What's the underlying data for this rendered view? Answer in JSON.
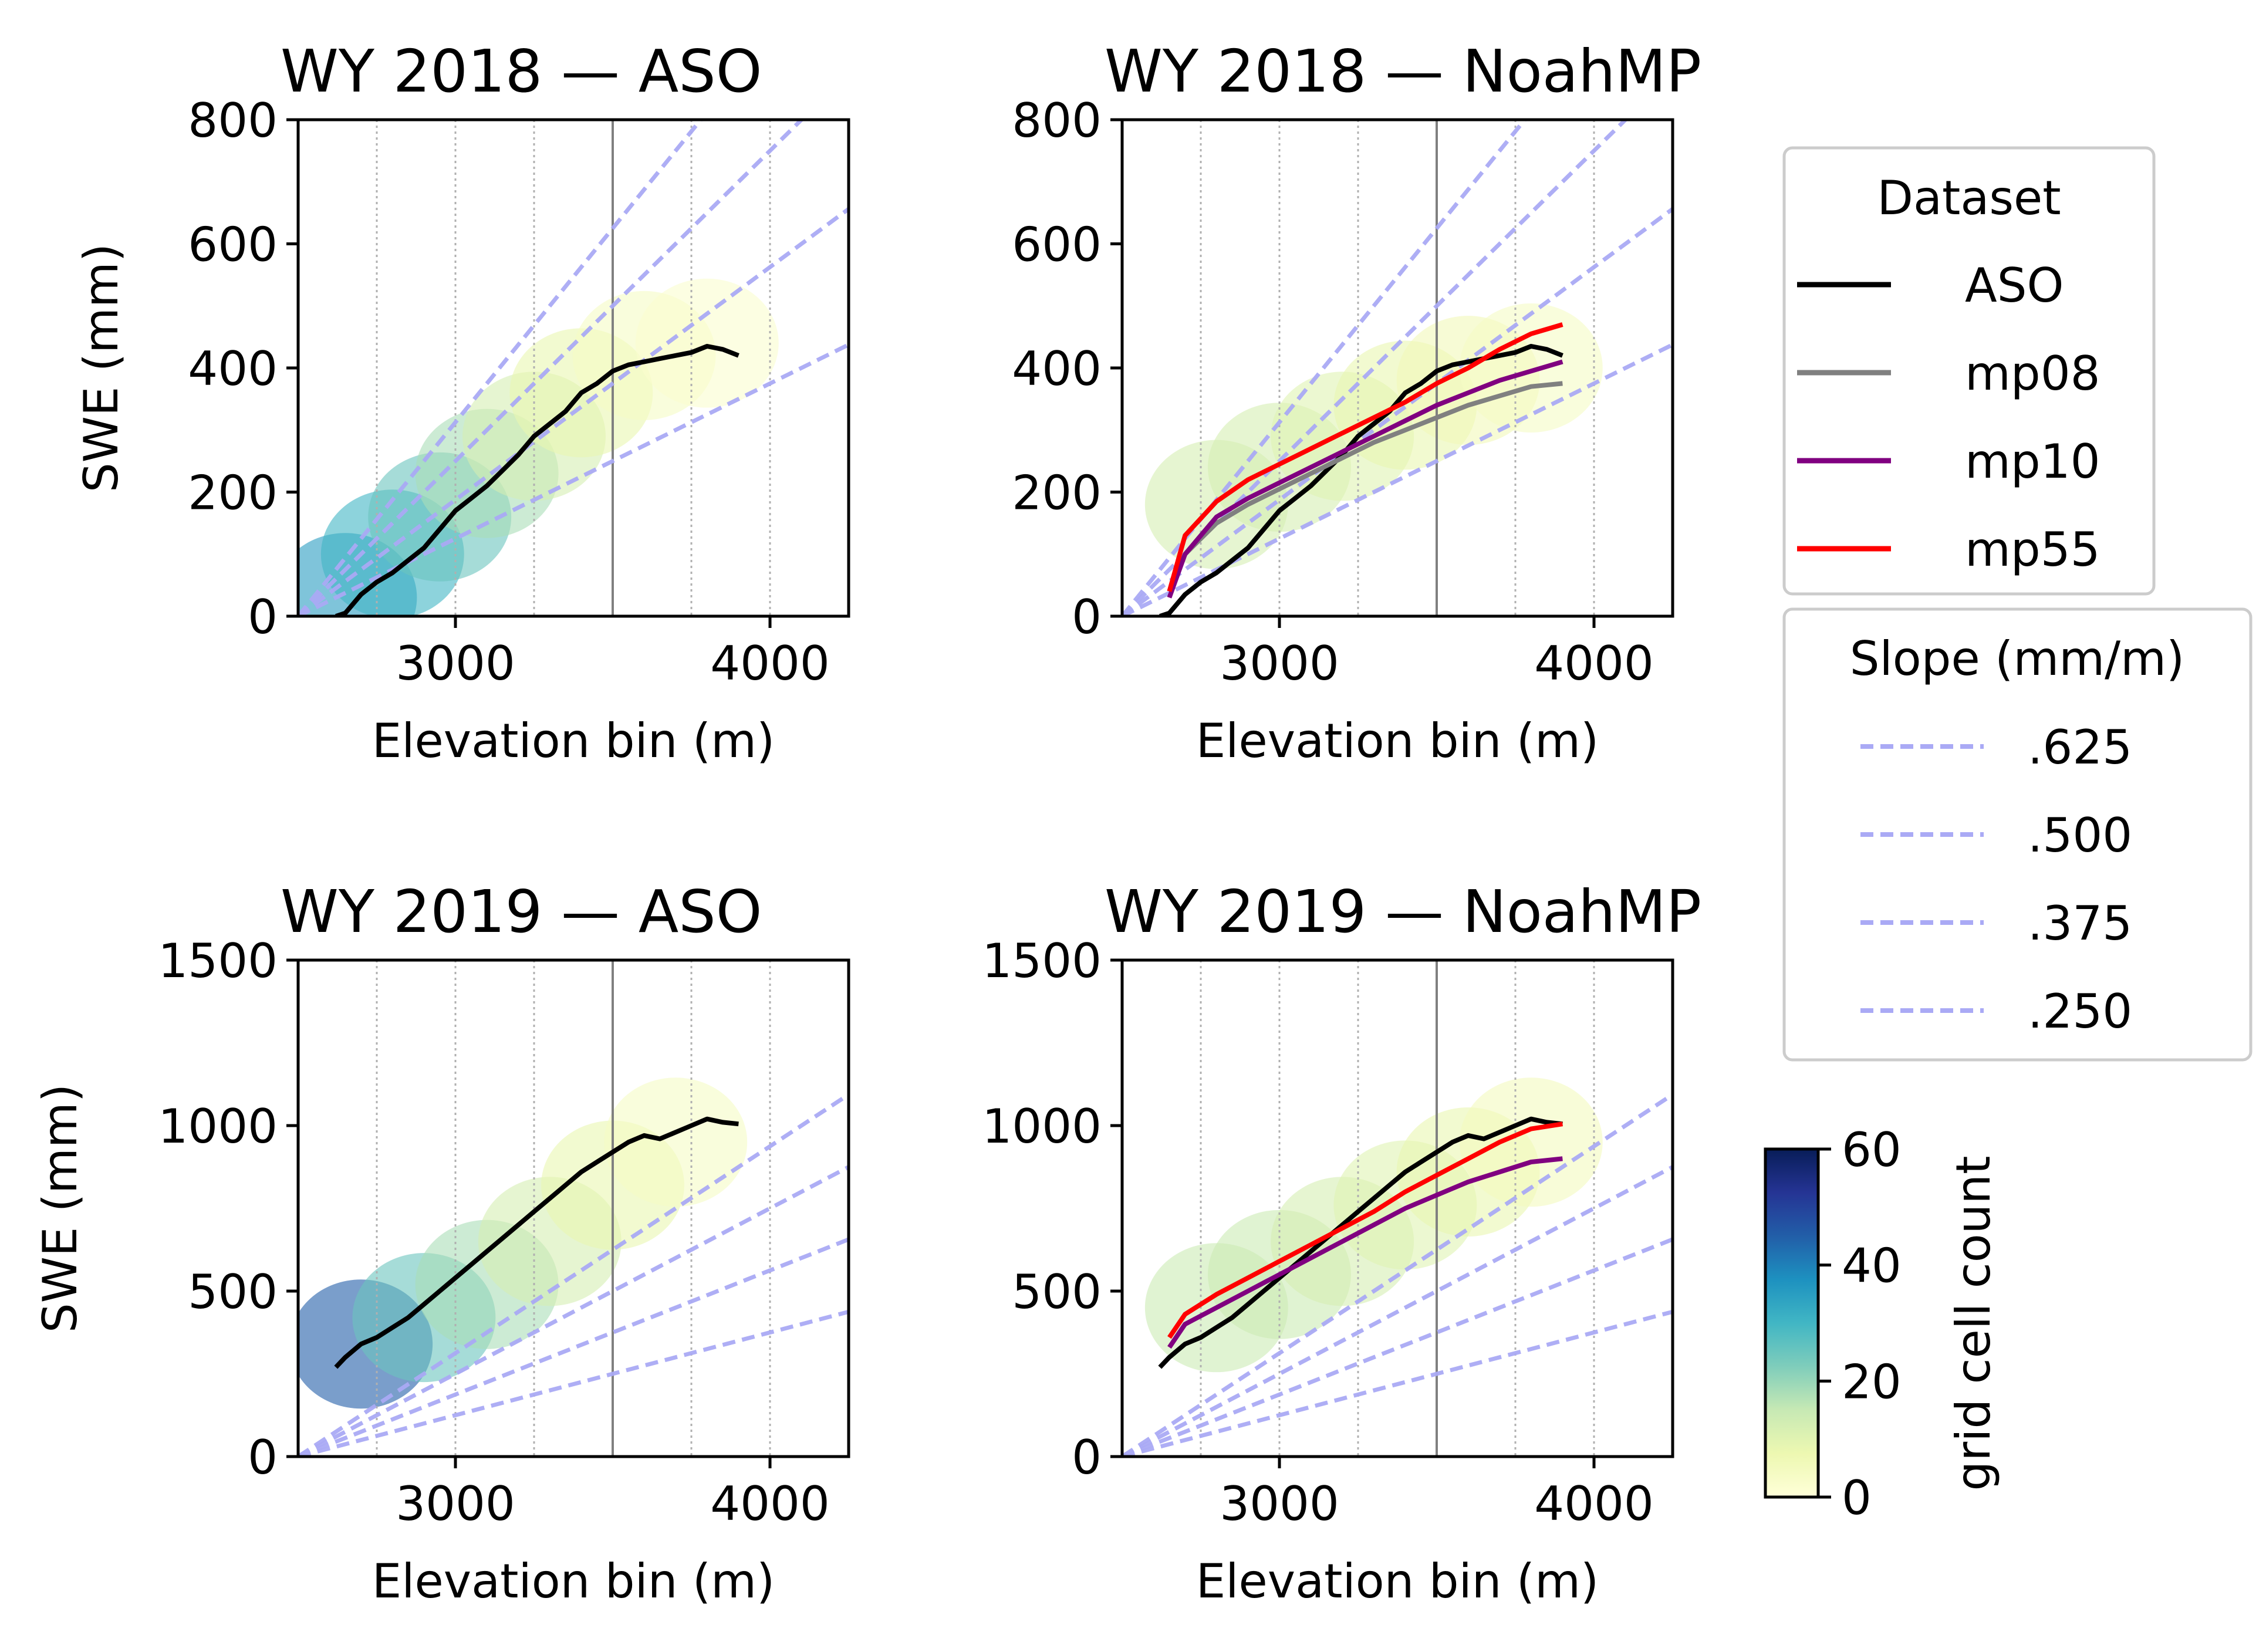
{
  "chart_data": {
    "type": "line",
    "panels": [
      {
        "title": "WY 2018 — ASO",
        "xlabel": "Elevation bin (m)",
        "ylabel": "SWE (mm)",
        "xlim": [
          2500,
          4250
        ],
        "ylim": [
          0,
          800
        ],
        "xticks": [
          3000,
          4000
        ],
        "yticks": [
          0,
          200,
          400,
          600,
          800
        ],
        "hexbin_density": [
          {
            "x": 2650,
            "y": 30,
            "count": 35
          },
          {
            "x": 2800,
            "y": 100,
            "count": 30
          },
          {
            "x": 2950,
            "y": 160,
            "count": 25
          },
          {
            "x": 3100,
            "y": 230,
            "count": 18
          },
          {
            "x": 3250,
            "y": 290,
            "count": 12
          },
          {
            "x": 3400,
            "y": 360,
            "count": 8
          },
          {
            "x": 3600,
            "y": 420,
            "count": 4
          },
          {
            "x": 3800,
            "y": 440,
            "count": 2
          }
        ],
        "series": [
          {
            "name": "ASO",
            "color": "#000000",
            "x": [
              2620,
              2650,
              2700,
              2750,
              2800,
              2850,
              2900,
              2950,
              3000,
              3050,
              3100,
              3150,
              3200,
              3250,
              3300,
              3350,
              3400,
              3450,
              3500,
              3550,
              3600,
              3650,
              3700,
              3750,
              3800,
              3850,
              3900
            ],
            "y": [
              0,
              5,
              35,
              55,
              70,
              90,
              110,
              140,
              170,
              190,
              210,
              235,
              260,
              290,
              310,
              330,
              360,
              375,
              395,
              405,
              410,
              415,
              420,
              425,
              435,
              430,
              420
            ]
          }
        ]
      },
      {
        "title": "WY 2018 — NoahMP",
        "xlabel": "Elevation bin (m)",
        "ylabel": "",
        "xlim": [
          2500,
          4250
        ],
        "ylim": [
          0,
          800
        ],
        "xticks": [
          3000,
          4000
        ],
        "yticks": [
          0,
          200,
          400,
          600,
          800
        ],
        "hexbin_density": [
          {
            "x": 2800,
            "y": 180,
            "count": 12
          },
          {
            "x": 3000,
            "y": 240,
            "count": 12
          },
          {
            "x": 3200,
            "y": 290,
            "count": 10
          },
          {
            "x": 3400,
            "y": 340,
            "count": 8
          },
          {
            "x": 3600,
            "y": 380,
            "count": 6
          },
          {
            "x": 3800,
            "y": 400,
            "count": 4
          }
        ],
        "series": [
          {
            "name": "ASO",
            "color": "#000000",
            "x": [
              2620,
              2650,
              2700,
              2750,
              2800,
              2850,
              2900,
              2950,
              3000,
              3050,
              3100,
              3150,
              3200,
              3250,
              3300,
              3350,
              3400,
              3450,
              3500,
              3550,
              3600,
              3650,
              3700,
              3750,
              3800,
              3850,
              3900
            ],
            "y": [
              0,
              5,
              35,
              55,
              70,
              90,
              110,
              140,
              170,
              190,
              210,
              235,
              260,
              290,
              310,
              330,
              360,
              375,
              395,
              405,
              410,
              415,
              420,
              425,
              435,
              430,
              420
            ]
          },
          {
            "name": "mp08",
            "color": "#808080",
            "x": [
              2650,
              2700,
              2800,
              2900,
              3000,
              3100,
              3200,
              3300,
              3400,
              3500,
              3600,
              3700,
              3800,
              3900
            ],
            "y": [
              40,
              100,
              150,
              180,
              205,
              230,
              255,
              280,
              300,
              320,
              340,
              355,
              370,
              375
            ]
          },
          {
            "name": "mp10",
            "color": "#800080",
            "x": [
              2650,
              2700,
              2800,
              2900,
              3000,
              3100,
              3200,
              3300,
              3400,
              3500,
              3600,
              3700,
              3800,
              3900
            ],
            "y": [
              30,
              100,
              160,
              190,
              215,
              240,
              265,
              290,
              315,
              340,
              360,
              380,
              395,
              410
            ]
          },
          {
            "name": "mp55",
            "color": "#ff0000",
            "x": [
              2650,
              2700,
              2800,
              2900,
              3000,
              3100,
              3200,
              3300,
              3400,
              3500,
              3600,
              3700,
              3800,
              3900
            ],
            "y": [
              40,
              130,
              185,
              220,
              245,
              270,
              295,
              320,
              345,
              375,
              400,
              430,
              455,
              470
            ]
          }
        ]
      },
      {
        "title": "WY 2019 — ASO",
        "xlabel": "Elevation bin (m)",
        "ylabel": "SWE (mm)",
        "xlim": [
          2500,
          4250
        ],
        "ylim": [
          0,
          1500
        ],
        "xticks": [
          3000,
          4000
        ],
        "yticks": [
          0,
          500,
          1000,
          1500
        ],
        "hexbin_density": [
          {
            "x": 2700,
            "y": 340,
            "count": 45
          },
          {
            "x": 2900,
            "y": 420,
            "count": 25
          },
          {
            "x": 3100,
            "y": 520,
            "count": 18
          },
          {
            "x": 3300,
            "y": 650,
            "count": 12
          },
          {
            "x": 3500,
            "y": 820,
            "count": 8
          },
          {
            "x": 3700,
            "y": 950,
            "count": 4
          }
        ],
        "series": [
          {
            "name": "ASO",
            "color": "#000000",
            "x": [
              2620,
              2650,
              2700,
              2750,
              2800,
              2850,
              2900,
              2950,
              3000,
              3050,
              3100,
              3150,
              3200,
              3250,
              3300,
              3350,
              3400,
              3450,
              3500,
              3550,
              3600,
              3650,
              3700,
              3750,
              3800,
              3850,
              3900
            ],
            "y": [
              270,
              300,
              340,
              360,
              390,
              420,
              460,
              500,
              540,
              580,
              620,
              660,
              700,
              740,
              780,
              820,
              860,
              890,
              920,
              950,
              970,
              960,
              980,
              1000,
              1020,
              1010,
              1005
            ]
          }
        ]
      },
      {
        "title": "WY 2019 — NoahMP",
        "xlabel": "Elevation bin (m)",
        "ylabel": "",
        "xlim": [
          2500,
          4250
        ],
        "ylim": [
          0,
          1500
        ],
        "xticks": [
          3000,
          4000
        ],
        "yticks": [
          0,
          500,
          1000,
          1500
        ],
        "hexbin_density": [
          {
            "x": 2800,
            "y": 450,
            "count": 14
          },
          {
            "x": 3000,
            "y": 550,
            "count": 14
          },
          {
            "x": 3200,
            "y": 650,
            "count": 12
          },
          {
            "x": 3400,
            "y": 760,
            "count": 10
          },
          {
            "x": 3600,
            "y": 860,
            "count": 8
          },
          {
            "x": 3800,
            "y": 950,
            "count": 5
          }
        ],
        "series": [
          {
            "name": "ASO",
            "color": "#000000",
            "x": [
              2620,
              2650,
              2700,
              2750,
              2800,
              2850,
              2900,
              2950,
              3000,
              3050,
              3100,
              3150,
              3200,
              3250,
              3300,
              3350,
              3400,
              3450,
              3500,
              3550,
              3600,
              3650,
              3700,
              3750,
              3800,
              3850,
              3900
            ],
            "y": [
              270,
              300,
              340,
              360,
              390,
              420,
              460,
              500,
              540,
              580,
              620,
              660,
              700,
              740,
              780,
              820,
              860,
              890,
              920,
              950,
              970,
              960,
              980,
              1000,
              1020,
              1010,
              1005
            ]
          },
          {
            "name": "mp10",
            "color": "#800080",
            "x": [
              2650,
              2700,
              2800,
              2900,
              3000,
              3100,
              3200,
              3300,
              3400,
              3500,
              3600,
              3700,
              3800,
              3900
            ],
            "y": [
              330,
              400,
              450,
              500,
              550,
              600,
              650,
              700,
              750,
              790,
              830,
              860,
              890,
              900
            ]
          },
          {
            "name": "mp55",
            "color": "#ff0000",
            "x": [
              2650,
              2700,
              2800,
              2900,
              3000,
              3100,
              3200,
              3300,
              3400,
              3500,
              3600,
              3700,
              3800,
              3900
            ],
            "y": [
              360,
              430,
              490,
              540,
              590,
              640,
              690,
              740,
              800,
              850,
              900,
              950,
              990,
              1005
            ]
          }
        ]
      }
    ],
    "reference_lines": {
      "x0": 2500,
      "slopes": [
        0.625,
        0.5,
        0.375,
        0.25
      ],
      "labels": [
        ".625",
        ".500",
        ".375",
        ".250"
      ],
      "color": "#aaaaf5"
    },
    "vertical_gridlines": {
      "dotted_x": [
        2750,
        3000,
        3250,
        3750,
        4000
      ],
      "solid_x": [
        3500
      ]
    },
    "legend": {
      "dataset_title": "Dataset",
      "dataset_items": [
        {
          "label": "ASO",
          "color": "#000000"
        },
        {
          "label": "mp08",
          "color": "#808080"
        },
        {
          "label": "mp10",
          "color": "#800080"
        },
        {
          "label": "mp55",
          "color": "#ff0000"
        }
      ],
      "slope_title": "Slope (mm/m)",
      "placement": "right"
    },
    "colorbar": {
      "label": "grid cell count",
      "min": 0,
      "max": 60,
      "ticks": [
        0,
        20,
        40,
        60
      ],
      "colormap": [
        "#ffffd9",
        "#edf8b1",
        "#c7e9b4",
        "#7fcdbb",
        "#41b6c4",
        "#1d91c0",
        "#225ea8",
        "#253494",
        "#081d58"
      ]
    }
  }
}
